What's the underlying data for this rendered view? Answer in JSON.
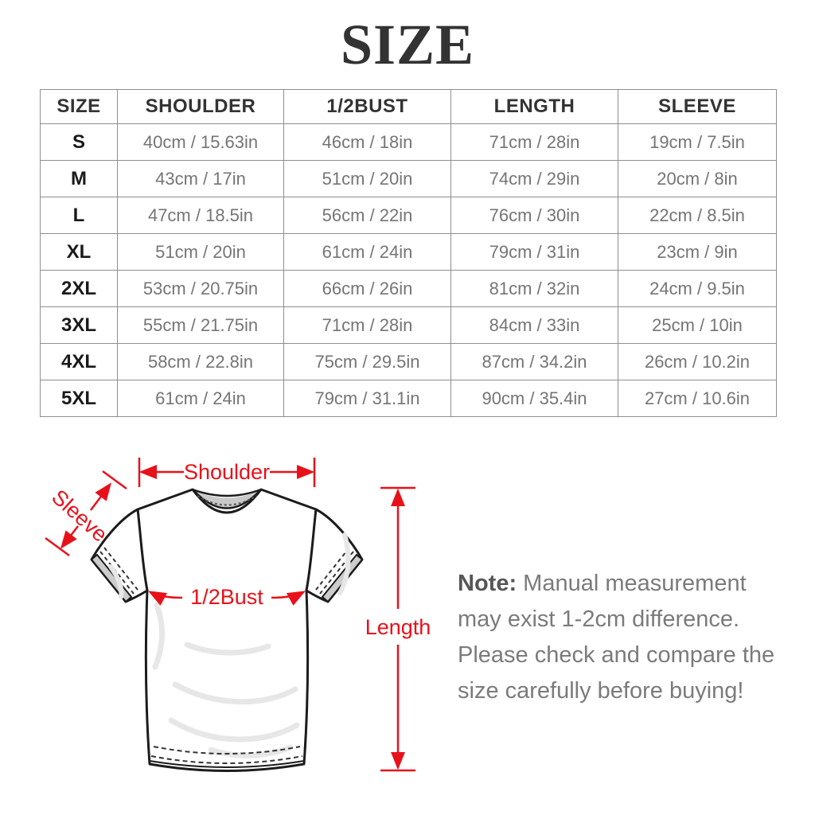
{
  "title": "SIZE",
  "table": {
    "headers": [
      "SIZE",
      "SHOULDER",
      "1/2BUST",
      "LENGTH",
      "SLEEVE"
    ],
    "rows": [
      [
        "S",
        "40cm / 15.63in",
        "46cm / 18in",
        "71cm / 28in",
        "19cm / 7.5in"
      ],
      [
        "M",
        "43cm / 17in",
        "51cm / 20in",
        "74cm / 29in",
        "20cm / 8in"
      ],
      [
        "L",
        "47cm / 18.5in",
        "56cm / 22in",
        "76cm / 30in",
        "22cm / 8.5in"
      ],
      [
        "XL",
        "51cm / 20in",
        "61cm / 24in",
        "79cm / 31in",
        "23cm / 9in"
      ],
      [
        "2XL",
        "53cm / 20.75in",
        "66cm / 26in",
        "81cm / 32in",
        "24cm / 9.5in"
      ],
      [
        "3XL",
        "55cm / 21.75in",
        "71cm / 28in",
        "84cm / 33in",
        "25cm / 10in"
      ],
      [
        "4XL",
        "58cm / 22.8in",
        "75cm / 29.5in",
        "87cm / 34.2in",
        "26cm / 10.2in"
      ],
      [
        "5XL",
        "61cm / 24in",
        "79cm / 31.1in",
        "90cm / 35.4in",
        "27cm / 10.6in"
      ]
    ]
  },
  "diagram": {
    "shoulder_label": "Shoulder",
    "sleeve_label": "Sleeve",
    "bust_label": "1/2Bust",
    "length_label": "Length",
    "accent_color": "#e8111a"
  },
  "note": {
    "label": "Note:",
    "text": " Manual measurement may exist 1-2cm difference. Please check and compare the size carefully before buying!"
  }
}
